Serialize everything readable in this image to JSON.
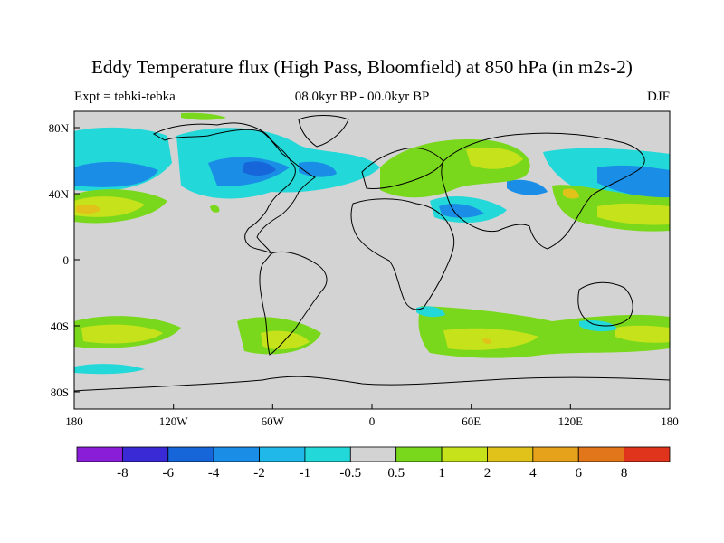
{
  "title": "Eddy Temperature flux (High Pass, Bloomfield) at 850 hPa (in m2s-2)",
  "subtitle_left": "Expt = tebki-tebka",
  "subtitle_center": "08.0kyr BP - 00.0kyr BP",
  "subtitle_right": "DJF",
  "lat_ticks": [
    "80N",
    "40N",
    "0",
    "40S",
    "80S"
  ],
  "lon_ticks": [
    "180",
    "120W",
    "60W",
    "0",
    "60E",
    "120E",
    "180"
  ],
  "colorbar": {
    "colors": [
      "#8a1ed8",
      "#3a2ad6",
      "#1666da",
      "#1a8ee6",
      "#20b8e8",
      "#22d8d8",
      "#d3d3d3",
      "#7ad81c",
      "#c6e21a",
      "#e0c21a",
      "#e6a21a",
      "#e2761a",
      "#e0341c"
    ],
    "labels": [
      "-8",
      "-6",
      "-4",
      "-2",
      "-1",
      "-0.5",
      "0.5",
      "1",
      "2",
      "4",
      "6",
      "8"
    ]
  },
  "colors": {
    "background_gray": "#d3d3d3",
    "blue_light": "#22d8d8",
    "blue_mid": "#20b8e8",
    "blue_dark": "#1a8ee6",
    "green": "#7ad81c",
    "yellow": "#c6e21a",
    "orange": "#e0c21a"
  }
}
